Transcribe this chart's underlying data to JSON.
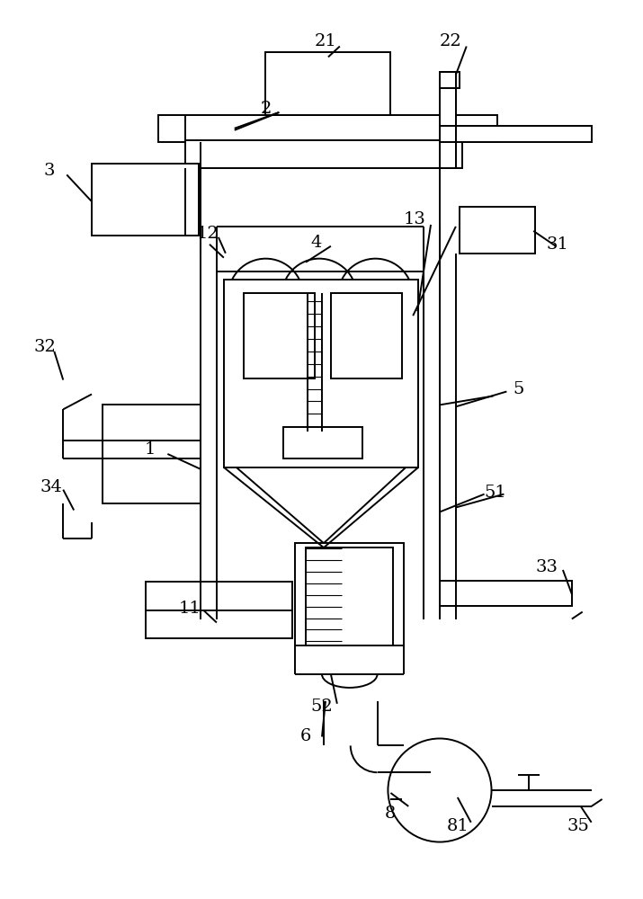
{
  "bg_color": "#ffffff",
  "line_color": "#000000",
  "lw": 1.4,
  "lw_thin": 0.8,
  "fig_width": 7.15,
  "fig_height": 10.0
}
